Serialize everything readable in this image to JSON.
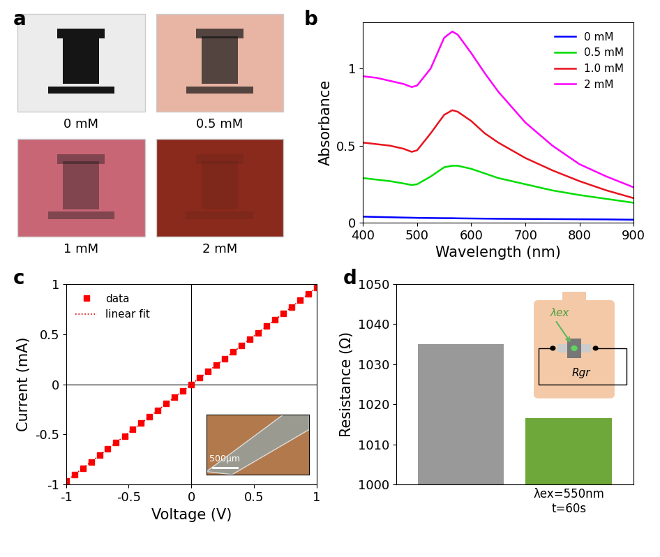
{
  "chart_data": [
    {
      "type": "image_grid",
      "panel": "a",
      "labels": [
        "0 mM",
        "0.5 mM",
        "1 mM",
        "2 mM"
      ],
      "colors": [
        "#ececec",
        "#e8b4a4",
        "#c96676",
        "#8a2a1c"
      ]
    },
    {
      "type": "line",
      "panel": "b",
      "x": [
        400,
        425,
        450,
        475,
        490,
        500,
        525,
        550,
        565,
        575,
        600,
        625,
        650,
        700,
        750,
        800,
        850,
        900
      ],
      "series": [
        {
          "name": "0 mM",
          "color": "#0000ff",
          "values": [
            0.04,
            0.038,
            0.036,
            0.034,
            0.033,
            0.032,
            0.031,
            0.03,
            0.03,
            0.029,
            0.028,
            0.027,
            0.026,
            0.025,
            0.024,
            0.023,
            0.022,
            0.02
          ]
        },
        {
          "name": "0.5 mM",
          "color": "#00dd00",
          "values": [
            0.29,
            0.28,
            0.27,
            0.255,
            0.245,
            0.25,
            0.3,
            0.36,
            0.37,
            0.37,
            0.35,
            0.32,
            0.29,
            0.25,
            0.21,
            0.18,
            0.155,
            0.13
          ]
        },
        {
          "name": "1.0 mM",
          "color": "#e8141e",
          "values": [
            0.52,
            0.51,
            0.5,
            0.48,
            0.46,
            0.47,
            0.58,
            0.7,
            0.73,
            0.72,
            0.66,
            0.58,
            0.52,
            0.42,
            0.34,
            0.27,
            0.21,
            0.16
          ]
        },
        {
          "name": "2 mM",
          "color": "#ff00ff",
          "values": [
            0.95,
            0.94,
            0.92,
            0.9,
            0.88,
            0.89,
            1.0,
            1.2,
            1.24,
            1.22,
            1.1,
            0.97,
            0.85,
            0.65,
            0.5,
            0.38,
            0.3,
            0.23
          ]
        }
      ],
      "xlabel": "Wavelength (nm)",
      "ylabel": "Absorbance",
      "xlim": [
        400,
        900
      ],
      "xticks": [
        400,
        500,
        600,
        700,
        800,
        900
      ],
      "ylim": [
        0,
        1.3
      ],
      "yticks": [
        0,
        0.5,
        1
      ],
      "legend": "upper right"
    },
    {
      "type": "scatter",
      "panel": "c",
      "series": [
        {
          "name": "data",
          "type": "scatter",
          "marker": "square",
          "color": "#ff0000",
          "x": [
            -1.0,
            -0.933,
            -0.867,
            -0.8,
            -0.733,
            -0.667,
            -0.6,
            -0.533,
            -0.467,
            -0.4,
            -0.333,
            -0.267,
            -0.2,
            -0.133,
            -0.067,
            0.0,
            0.067,
            0.133,
            0.2,
            0.267,
            0.333,
            0.4,
            0.467,
            0.533,
            0.6,
            0.667,
            0.733,
            0.8,
            0.867,
            0.933,
            1.0
          ],
          "values": [
            -0.966,
            -0.901,
            -0.838,
            -0.773,
            -0.708,
            -0.644,
            -0.58,
            -0.515,
            -0.451,
            -0.386,
            -0.322,
            -0.258,
            -0.193,
            -0.128,
            -0.065,
            0.0,
            0.065,
            0.128,
            0.193,
            0.258,
            0.322,
            0.386,
            0.451,
            0.515,
            0.58,
            0.644,
            0.708,
            0.773,
            0.838,
            0.901,
            0.966
          ]
        },
        {
          "name": "linear fit",
          "type": "line",
          "line_style": "dotted",
          "color": "#cc0000",
          "x": [
            -1.0,
            1.0
          ],
          "values": [
            -0.966,
            0.966
          ]
        }
      ],
      "xlabel": "Voltage (V)",
      "ylabel": "Current (mA)",
      "xlim": [
        -1,
        1
      ],
      "xticks": [
        -1,
        -0.5,
        0,
        0.5,
        1
      ],
      "ylim": [
        -1,
        1
      ],
      "yticks": [
        -1,
        -0.5,
        0,
        0.5,
        1
      ],
      "legend": "upper left",
      "annotations": [
        "500µm"
      ]
    },
    {
      "type": "bar",
      "panel": "d",
      "categories": [
        null,
        "λex=550nm\nt=60s"
      ],
      "values": [
        1035,
        1016.5
      ],
      "colors": [
        "#999999",
        "#6fa83a"
      ],
      "ylabel": "Resistance (Ω)",
      "ylim": [
        1000,
        1050
      ],
      "yticks": [
        1000,
        1010,
        1020,
        1030,
        1040,
        1050
      ],
      "annotations": [
        "λex",
        "Rgr"
      ]
    }
  ]
}
